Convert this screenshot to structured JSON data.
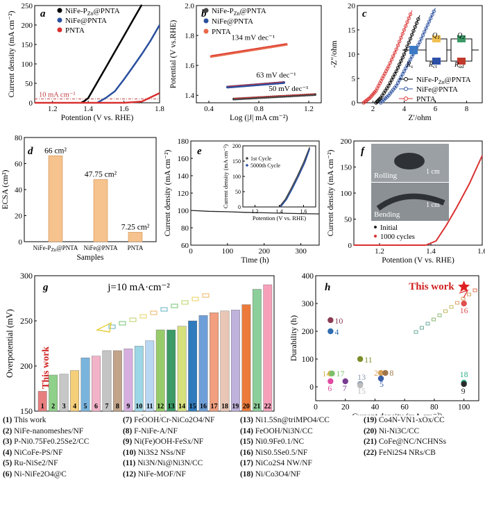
{
  "chart_data": [
    {
      "panel": "a",
      "type": "line",
      "xlabel": "Potention (V vs. RHE)",
      "ylabel": "Current density (mA cm⁻²)",
      "xlim": [
        1.1,
        1.8
      ],
      "ylim": [
        0,
        250
      ],
      "xticks": [
        "1.2",
        "1.4",
        "1.6",
        "1.8"
      ],
      "yticks": [
        "0",
        "50",
        "100",
        "150",
        "200",
        "250"
      ],
      "annotation": "10 mA cm⁻²",
      "series": [
        {
          "name": "NiFe-P_Zn@PNTA",
          "color": "#000000",
          "x": [
            1.36,
            1.38,
            1.4,
            1.45,
            1.5,
            1.55,
            1.6,
            1.65,
            1.7
          ],
          "y": [
            0,
            5,
            12,
            52,
            92,
            132,
            172,
            212,
            252
          ]
        },
        {
          "name": "NiFe@PNTA",
          "color": "#2a4f9e",
          "x": [
            1.45,
            1.47,
            1.5,
            1.55,
            1.6,
            1.65,
            1.7,
            1.75,
            1.8
          ],
          "y": [
            0,
            5,
            13,
            30,
            60,
            92,
            125,
            160,
            200
          ]
        },
        {
          "name": "PNTA",
          "color": "#d93030",
          "x": [
            1.1,
            1.6,
            1.7,
            1.8
          ],
          "y": [
            0,
            0,
            3,
            25
          ]
        }
      ]
    },
    {
      "panel": "b",
      "type": "scatter",
      "xlabel": "Log (|J| mA cm⁻²)",
      "ylabel": "Potential (V vs.RHE)",
      "xlim": [
        0.3,
        1.3
      ],
      "ylim": [
        1.35,
        2.0
      ],
      "xticks": [
        "0.4",
        "0.8",
        "1.2"
      ],
      "yticks": [
        "1.4",
        "1.6",
        "1.8",
        "2.0"
      ],
      "series": [
        {
          "name": "NiFe-P_Zn@PNTA",
          "color": "#444444",
          "x": [
            0.6,
            1.25
          ],
          "y": [
            1.375,
            1.405
          ],
          "tafel": "50 mV dec⁻¹"
        },
        {
          "name": "NiFe@PNTA",
          "color": "#2a4f9e",
          "x": [
            0.55,
            1.0
          ],
          "y": [
            1.455,
            1.485
          ],
          "tafel": "63 mV dec⁻¹"
        },
        {
          "name": "PNTA",
          "color": "#e8684a",
          "x": [
            0.42,
            1.02
          ],
          "y": [
            1.66,
            1.74
          ],
          "tafel": "134 mV dec⁻¹"
        }
      ]
    },
    {
      "panel": "c",
      "type": "scatter",
      "xlabel": "Z′/ohm",
      "ylabel": "-Z″/ohm",
      "xlim": [
        1,
        9
      ],
      "ylim": [
        0,
        20
      ],
      "xticks": [
        "2",
        "4",
        "6",
        "8"
      ],
      "yticks": [
        "0",
        "5",
        "10",
        "15",
        "20"
      ],
      "circuit_labels": [
        "R_s",
        "Q_1",
        "R_ct",
        "Q_2",
        "R_ad"
      ],
      "series": [
        {
          "name": "NiFe-P_Zn@PNTA",
          "color": "#000000",
          "x": [
            2.2,
            2.5,
            3,
            3.5,
            4,
            4.5,
            5
          ],
          "y": [
            0,
            1,
            3.5,
            6.5,
            10,
            14,
            18
          ]
        },
        {
          "name": "NiFe@PNTA",
          "color": "#2a4f9e",
          "x": [
            2.5,
            3,
            3.5,
            4,
            4.5,
            5,
            5.5,
            6
          ],
          "y": [
            0,
            1.5,
            3.5,
            6.5,
            9.5,
            12.5,
            16,
            19.5
          ]
        },
        {
          "name": "PNTA",
          "color": "#d93030",
          "x": [
            1.4,
            1.8,
            2.2,
            2.6,
            3,
            3.5,
            4,
            4.5
          ],
          "y": [
            0,
            1,
            2.5,
            5,
            7.5,
            11,
            15,
            19
          ]
        }
      ]
    },
    {
      "panel": "d",
      "type": "bar",
      "xlabel": "Samples",
      "ylabel": "ECSA (cm²)",
      "ylim": [
        0,
        80
      ],
      "yticks": [
        "0",
        "20",
        "40",
        "60",
        "80"
      ],
      "categories": [
        "NiFe-P_Zn@PNTA",
        "NiFe@PNTA",
        "PNTA"
      ],
      "values": [
        66,
        47.75,
        7.25
      ],
      "labels": [
        "66 cm²",
        "47.75 cm²",
        "7.25 cm²"
      ],
      "color": "#f6c28e"
    },
    {
      "panel": "e",
      "type": "line",
      "xlabel": "Time (h)",
      "ylabel": "Current density (mA cm⁻²)",
      "xlim": [
        0,
        350
      ],
      "ylim": [
        60,
        180
      ],
      "xticks": [
        "0",
        "100",
        "200",
        "300"
      ],
      "yticks": [
        "60",
        "80",
        "100",
        "120",
        "140",
        "160",
        "180"
      ],
      "series": [
        {
          "name": "stability",
          "color": "#222222",
          "x": [
            0,
            50,
            100,
            150,
            200,
            250,
            300,
            350
          ],
          "y": [
            100,
            99,
            98.5,
            97.8,
            97.3,
            96.8,
            96.3,
            96
          ]
        }
      ],
      "inset": {
        "xlabel": "Potention (V vs. RHE)",
        "ylabel": "Current density (mA cm⁻²)",
        "xlim": [
          1.1,
          1.7
        ],
        "ylim": [
          0,
          200
        ],
        "xticks": [
          "1.2",
          "1.4",
          "1.6"
        ],
        "yticks": [
          "0",
          "50",
          "100",
          "150",
          "200"
        ],
        "series": [
          {
            "name": "1st    Cycle",
            "color": "#444444",
            "x": [
              1.4,
              1.45,
              1.5,
              1.55,
              1.6,
              1.65
            ],
            "y": [
              0,
              25,
              62,
              102,
              145,
              195
            ]
          },
          {
            "name": "5000th Cycle",
            "color": "#2a4f9e",
            "x": [
              1.41,
              1.46,
              1.51,
              1.56,
              1.61,
              1.65
            ],
            "y": [
              0,
              25,
              62,
              102,
              145,
              190
            ]
          }
        ]
      }
    },
    {
      "panel": "f",
      "type": "line",
      "xlabel": "Potention (V vs. RHE)",
      "ylabel": "Current density (mA cm⁻²)",
      "xlim": [
        1.1,
        1.6
      ],
      "ylim": [
        0,
        200
      ],
      "xticks": [
        "1.2",
        "1.4",
        "1.6"
      ],
      "yticks": [
        "0",
        "50",
        "100",
        "150",
        "200"
      ],
      "photo_labels": [
        "Rolling",
        "1 cm",
        "Bending",
        "1 cm"
      ],
      "series": [
        {
          "name": "Initial",
          "color": "#222222",
          "x": [
            1.1,
            1.38,
            1.42,
            1.46,
            1.5,
            1.55,
            1.6
          ],
          "y": [
            0,
            0,
            8,
            38,
            72,
            118,
            172
          ]
        },
        {
          "name": "1000 cycles",
          "color": "#d93030",
          "x": [
            1.1,
            1.38,
            1.42,
            1.46,
            1.5,
            1.55,
            1.6
          ],
          "y": [
            0,
            0,
            8,
            38,
            72,
            118,
            172
          ]
        }
      ]
    },
    {
      "panel": "g",
      "type": "bar",
      "xlabel": "Samples",
      "ylabel": "Overpotential (mV)",
      "ylim": [
        150,
        300
      ],
      "yticks": [
        "150",
        "200",
        "250",
        "300"
      ],
      "title": "j=10 mA·cm⁻²",
      "annotation": "This work",
      "categories": [
        "1",
        "2",
        "3",
        "4",
        "5",
        "6",
        "7",
        "8",
        "9",
        "10",
        "11",
        "12",
        "13",
        "14",
        "15",
        "16",
        "17",
        "18",
        "19",
        "20",
        "21",
        "22"
      ],
      "values": [
        172,
        190,
        191,
        195,
        209,
        211,
        217,
        217,
        219,
        222,
        228,
        240,
        240,
        244,
        250,
        256,
        259,
        261,
        262,
        268,
        285,
        290
      ],
      "colors": [
        "#e87f7f",
        "#8fd08a",
        "#c7c7c7",
        "#f5cf7a",
        "#79b4dc",
        "#f2b3c8",
        "#c4c4c4",
        "#c2a48a",
        "#d6aee0",
        "#9dd6e6",
        "#b9d6f2",
        "#98cc6a",
        "#3b9a66",
        "#d6e07c",
        "#2f7bbd",
        "#6f9fd8",
        "#f29f7f",
        "#e9c6b5",
        "#bfb2dc",
        "#ec7a3a",
        "#8ccf9a",
        "#f7a0ba"
      ]
    },
    {
      "panel": "h",
      "type": "scatter",
      "xlabel": "Current density (mA cm⁻²)",
      "ylabel": "Durability (h)",
      "xlim": [
        0,
        110
      ],
      "ylim": [
        -50,
        400
      ],
      "xticks": [
        "0",
        "20",
        "40",
        "60",
        "80",
        "100"
      ],
      "yticks": [
        "0",
        "100",
        "200",
        "300",
        "400"
      ],
      "annotation": "This work",
      "points": [
        {
          "label": "10",
          "x": 10,
          "y": 240,
          "color": "#8b3d53"
        },
        {
          "label": "4",
          "x": 10,
          "y": 200,
          "color": "#2f6cb0"
        },
        {
          "label": "11",
          "x": 30,
          "y": 100,
          "color": "#7a8f2a"
        },
        {
          "label": "14",
          "x": 10,
          "y": 48,
          "color": "#d6b44a"
        },
        {
          "label": "17",
          "x": 11,
          "y": 48,
          "color": "#7bbf6a"
        },
        {
          "label": "20",
          "x": 44,
          "y": 50,
          "color": "#d6a35a"
        },
        {
          "label": "8",
          "x": 47,
          "y": 50,
          "color": "#a0764a"
        },
        {
          "label": "13",
          "x": 30,
          "y": 10,
          "color": "#8a9ab0"
        },
        {
          "label": "15",
          "x": 30,
          "y": 5,
          "color": "#bcbcbc"
        },
        {
          "label": "5",
          "x": 44,
          "y": 30,
          "color": "#3a5fa8"
        },
        {
          "label": "6",
          "x": 10,
          "y": 20,
          "color": "#e04aa0"
        },
        {
          "label": "7",
          "x": 20,
          "y": 20,
          "color": "#7a3a90"
        },
        {
          "label": "18",
          "x": 100,
          "y": 15,
          "color": "#2fae8a"
        },
        {
          "label": "9",
          "x": 100,
          "y": 10,
          "color": "#2a2a2a"
        },
        {
          "label": "16",
          "x": 100,
          "y": 300,
          "color": "#e05050"
        },
        {
          "label": "This work",
          "x": 100,
          "y": 360,
          "color": "#e02020"
        }
      ]
    }
  ],
  "text": {
    "a_legend": [
      "NiFe-P",
      "@PNTA",
      "NiFe@PNTA",
      "PNTA"
    ],
    "legend_list": [
      [
        "(1) This work",
        "(2) NiFe-nanomeshes/NF",
        "(3) P-Ni0.75Fe0.25Se2/CC",
        "(4) NiCoFe-PS/NF",
        "(5) Ru-NiSe2/NF",
        "(6) Ni-NiFe2O4@C"
      ],
      [
        "(7) FeOOH/Cr-NiCo2O4/NF",
        "(8) F-NiFe-A/NF",
        "(9) Ni(Fe)OOH-FeSx/NF",
        "(10) Ni3S2 NSs/NF",
        "(11) Ni3N/Ni@Ni3N/CC",
        "(12) NiFe-MOF/NF"
      ],
      [
        "(13) Ni1.5Sn@triMPO4/CC",
        "(14) FeOOH/Ni3N/CC",
        "(15) Ni0.9Fe0.1/NC",
        "(16) NiS0.5Se0.5/NF",
        "(17) NiCo2S4 NW/NF",
        "(18) Ni/Co3O4/NF"
      ],
      [
        "(19) Co4N-VN1-xOx/CC",
        "(20) Ni-Ni3C/CC",
        "(21) CoFe@NC/NCHNSs",
        "(22) FeNi2S4 NRs/CB"
      ]
    ]
  }
}
